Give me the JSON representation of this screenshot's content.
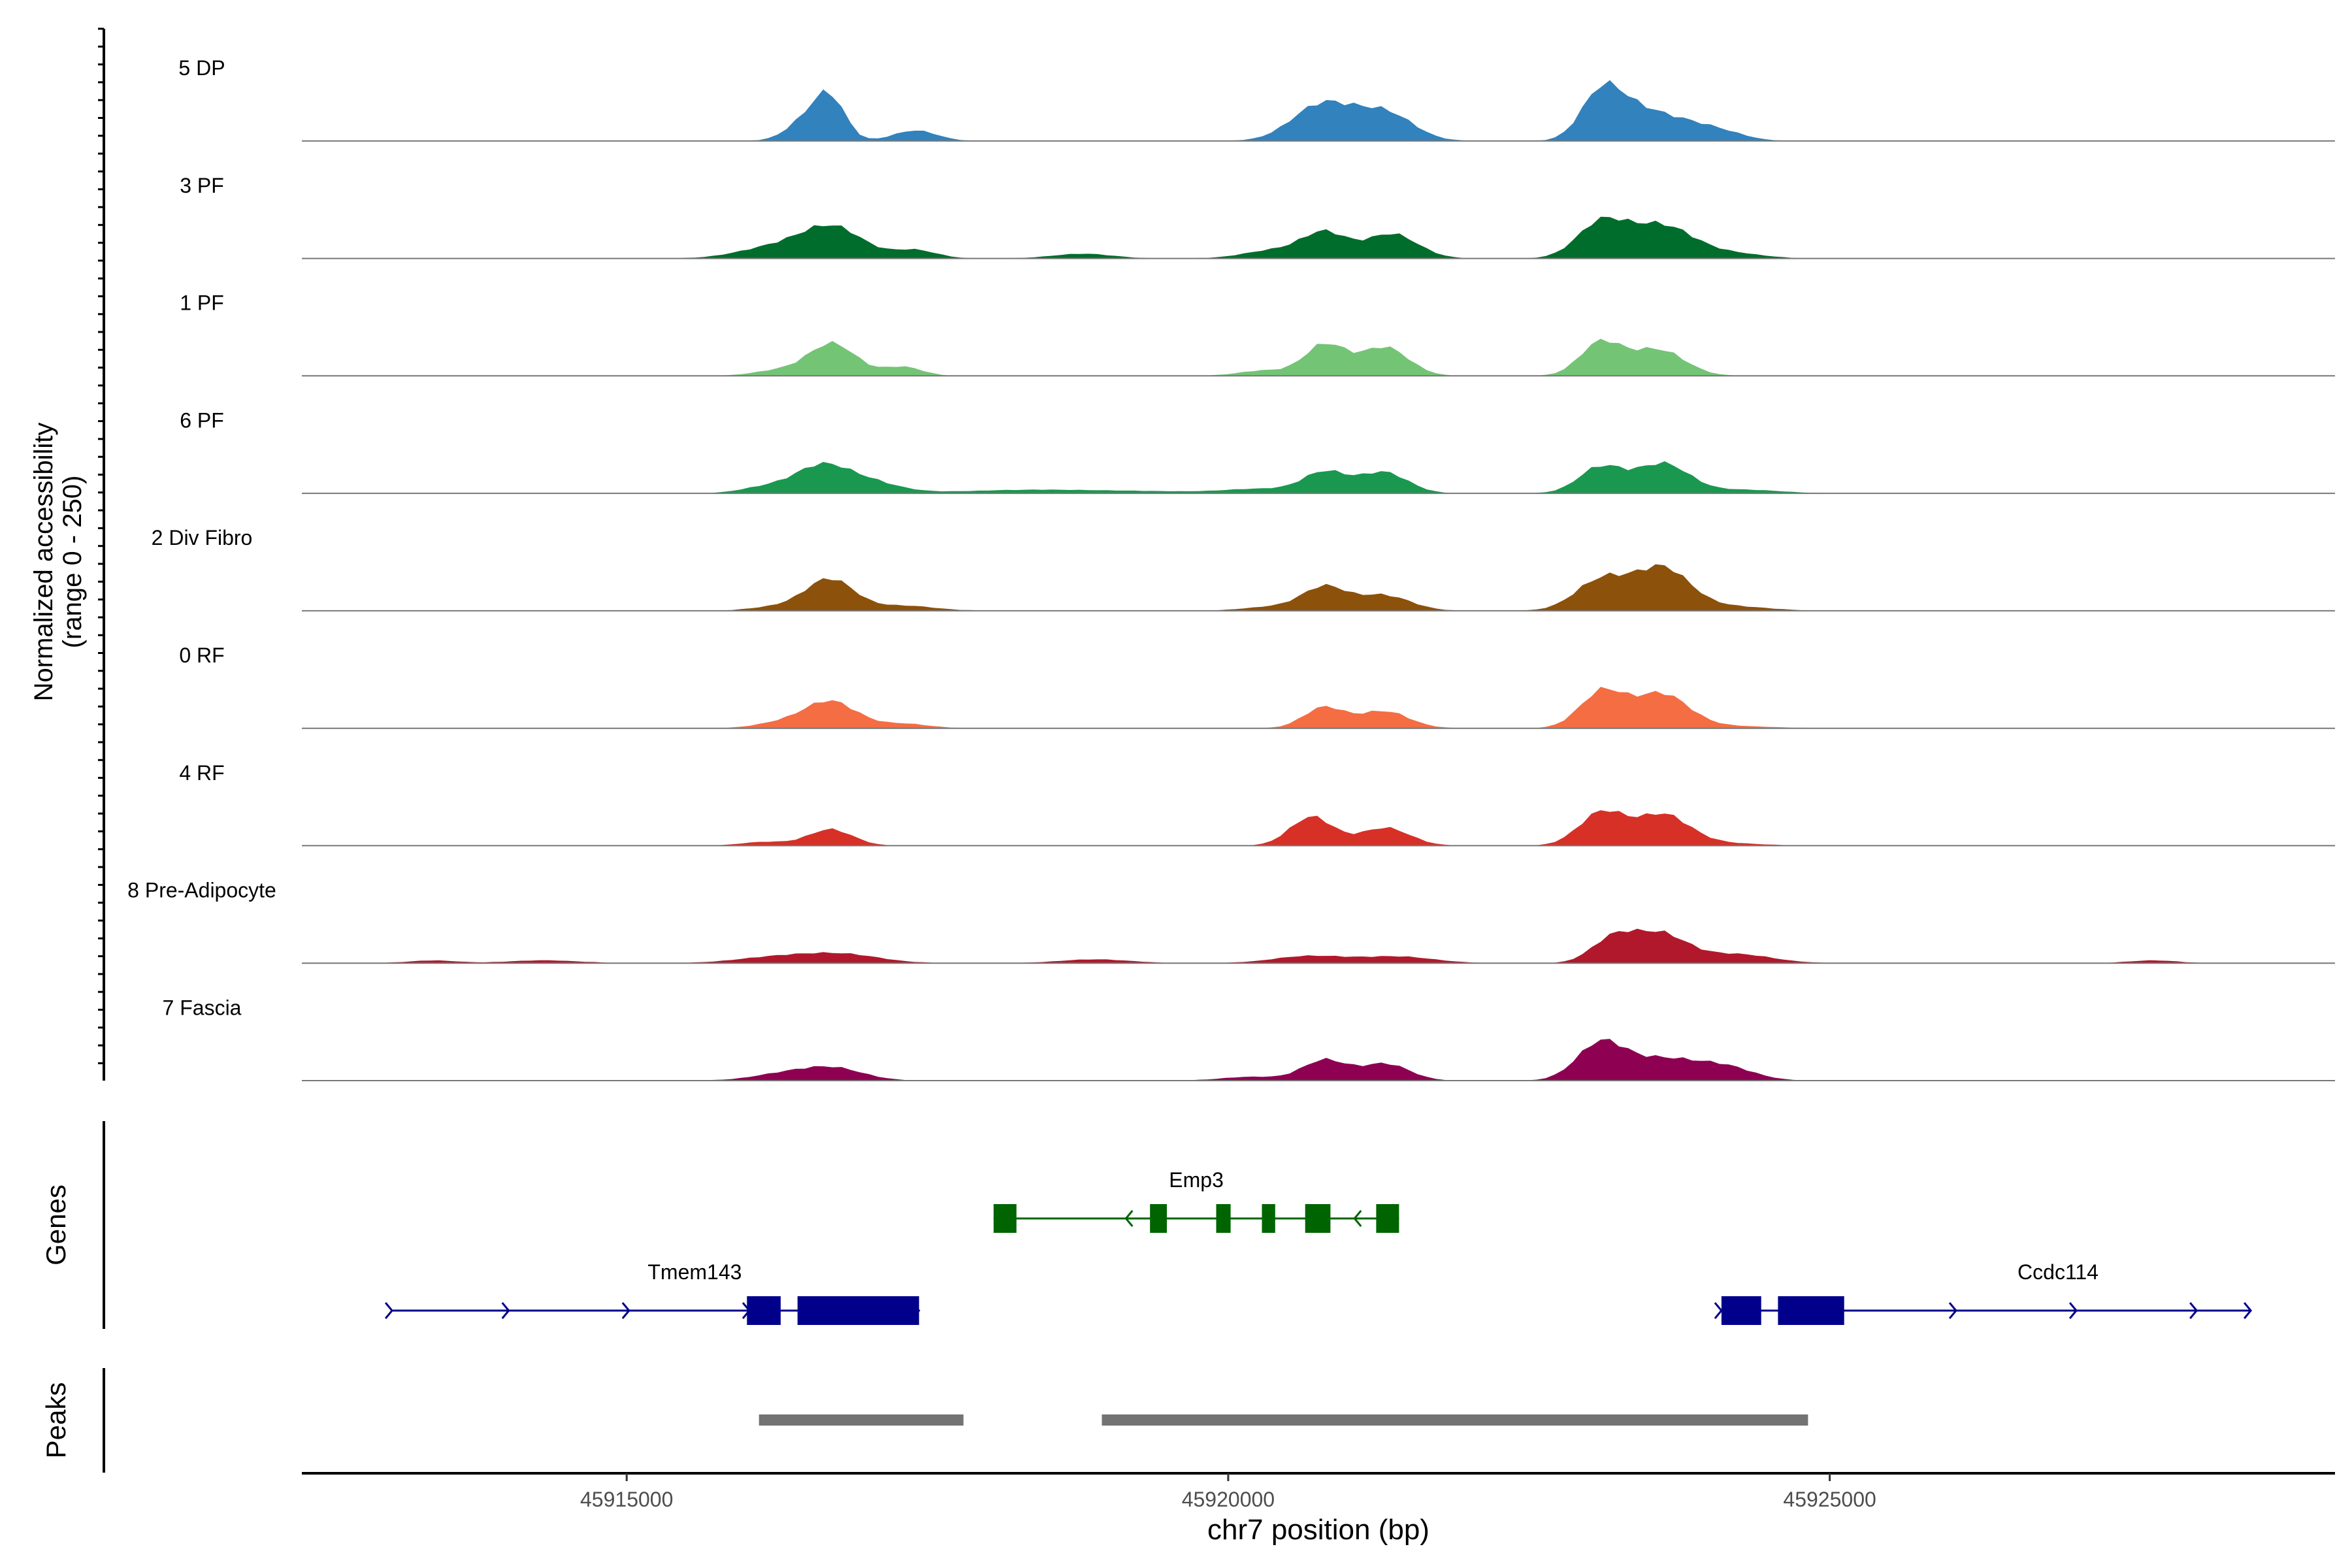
{
  "chart_data": {
    "type": "area",
    "title": "",
    "ylabel_line1": "Normalized accessibility",
    "ylabel_line2": "(range 0 - 250)",
    "xlabel": "chr7 position (bp)",
    "ylim": [
      0,
      250
    ],
    "xlim": [
      45912300,
      45929200
    ],
    "x_ticks": [
      45915000,
      45920000,
      45925000
    ],
    "x_tick_labels": [
      "45915000",
      "45920000",
      "45925000"
    ],
    "peaks_label": [
      45916630,
      45920680,
      45923170,
      45923620
    ],
    "tracks": [
      {
        "name": "5 DP",
        "color": "#3182bd",
        "peaks": [
          [
            45916540,
            58,
            170
          ],
          [
            45916700,
            75,
            120
          ],
          [
            45917400,
            22,
            180
          ],
          [
            45920800,
            85,
            250
          ],
          [
            45921300,
            60,
            230
          ],
          [
            45923100,
            100,
            170
          ],
          [
            45923400,
            52,
            200
          ],
          [
            45923750,
            40,
            220
          ],
          [
            45924100,
            18,
            200
          ]
        ]
      },
      {
        "name": "3 PF",
        "color": "#006d2c",
        "peaks": [
          [
            45916250,
            25,
            300
          ],
          [
            45916700,
            68,
            250
          ],
          [
            45917400,
            18,
            180
          ],
          [
            45918800,
            10,
            250
          ],
          [
            45920400,
            18,
            250
          ],
          [
            45920800,
            58,
            180
          ],
          [
            45921350,
            52,
            220
          ],
          [
            45923100,
            72,
            200
          ],
          [
            45923600,
            78,
            260
          ],
          [
            45924200,
            10,
            250
          ]
        ]
      },
      {
        "name": "1 PF",
        "color": "#74c476",
        "peaks": [
          [
            45916250,
            12,
            200
          ],
          [
            45916700,
            70,
            200
          ],
          [
            45917300,
            20,
            160
          ],
          [
            45920300,
            12,
            200
          ],
          [
            45920800,
            72,
            170
          ],
          [
            45921300,
            60,
            200
          ],
          [
            45923100,
            72,
            170
          ],
          [
            45923560,
            62,
            220
          ]
        ]
      },
      {
        "name": "6 PF",
        "color": "#1a9850",
        "peaks": [
          [
            45916150,
            14,
            200
          ],
          [
            45916600,
            54,
            220
          ],
          [
            45917000,
            25,
            250
          ],
          [
            45918600,
            8,
            800
          ],
          [
            45920300,
            10,
            300
          ],
          [
            45920800,
            45,
            180
          ],
          [
            45921300,
            45,
            200
          ],
          [
            45923100,
            60,
            180
          ],
          [
            45923600,
            66,
            220
          ],
          [
            45924300,
            8,
            300
          ]
        ]
      },
      {
        "name": "2 Div Fibro",
        "color": "#8c510a",
        "peaks": [
          [
            45916300,
            10,
            250
          ],
          [
            45916700,
            65,
            200
          ],
          [
            45917300,
            12,
            250
          ],
          [
            45920400,
            10,
            250
          ],
          [
            45920800,
            48,
            180
          ],
          [
            45921300,
            35,
            220
          ],
          [
            45923100,
            72,
            210
          ],
          [
            45923600,
            90,
            230
          ],
          [
            45924200,
            10,
            300
          ]
        ]
      },
      {
        "name": "0 RF",
        "color": "#f46d43",
        "peaks": [
          [
            45916250,
            10,
            200
          ],
          [
            45916700,
            60,
            220
          ],
          [
            45917300,
            10,
            200
          ],
          [
            45920800,
            44,
            170
          ],
          [
            45921300,
            40,
            200
          ],
          [
            45923100,
            82,
            180
          ],
          [
            45923600,
            72,
            230
          ],
          [
            45924200,
            5,
            300
          ]
        ]
      },
      {
        "name": "4 RF",
        "color": "#d73027",
        "peaks": [
          [
            45916150,
            8,
            200
          ],
          [
            45916700,
            38,
            180
          ],
          [
            45920700,
            62,
            180
          ],
          [
            45921300,
            42,
            200
          ],
          [
            45923100,
            72,
            190
          ],
          [
            45923620,
            66,
            220
          ],
          [
            45924100,
            6,
            300
          ]
        ]
      },
      {
        "name": "8 Pre-Adipocyte",
        "color": "#b2182b",
        "peaks": [
          [
            45913400,
            6,
            200
          ],
          [
            45914300,
            6,
            300
          ],
          [
            45916300,
            14,
            350
          ],
          [
            45916800,
            18,
            300
          ],
          [
            45918900,
            8,
            300
          ],
          [
            45920700,
            16,
            300
          ],
          [
            45921400,
            14,
            300
          ],
          [
            45923200,
            50,
            180
          ],
          [
            45923600,
            64,
            220
          ],
          [
            45924200,
            20,
            300
          ],
          [
            45927700,
            6,
            200
          ]
        ]
      },
      {
        "name": "7 Fascia",
        "color": "#8e0152",
        "peaks": [
          [
            45916300,
            14,
            250
          ],
          [
            45916700,
            28,
            250
          ],
          [
            45920200,
            8,
            250
          ],
          [
            45920800,
            48,
            180
          ],
          [
            45921300,
            36,
            200
          ],
          [
            45923100,
            78,
            200
          ],
          [
            45923600,
            48,
            260
          ],
          [
            45924100,
            30,
            250
          ]
        ]
      }
    ],
    "genes_label": "Genes",
    "peaks_track_label": "Peaks",
    "genes": [
      {
        "name": "Emp3",
        "color": "#006400",
        "strand": "-",
        "start": 45918050,
        "end": 45921420,
        "exons": [
          [
            45918050,
            45918240
          ],
          [
            45919350,
            45919490
          ],
          [
            45919900,
            45920020
          ],
          [
            45920280,
            45920390
          ],
          [
            45920640,
            45920850
          ],
          [
            45921230,
            45921420
          ]
        ],
        "arrows": [
          45919150,
          45921050
        ]
      },
      {
        "name": "Tmem143",
        "color": "#00008b",
        "strand": "+",
        "start": 45913050,
        "end": 45917430,
        "exons": [
          [
            45916000,
            45916280
          ],
          [
            45916420,
            45917430
          ]
        ],
        "arrows": [
          45914020,
          45915020,
          45916020
        ]
      },
      {
        "name": "Ccdc114",
        "color": "#00008b",
        "strand": "+",
        "start": 45924100,
        "end": 45928500,
        "exons": [
          [
            45924100,
            45924430
          ],
          [
            45924570,
            45925120
          ]
        ],
        "arrows": [
          45926050,
          45927050,
          45928050
        ]
      }
    ],
    "peak_regions": [
      [
        45916100,
        45917800
      ],
      [
        45918950,
        45924820
      ]
    ]
  }
}
